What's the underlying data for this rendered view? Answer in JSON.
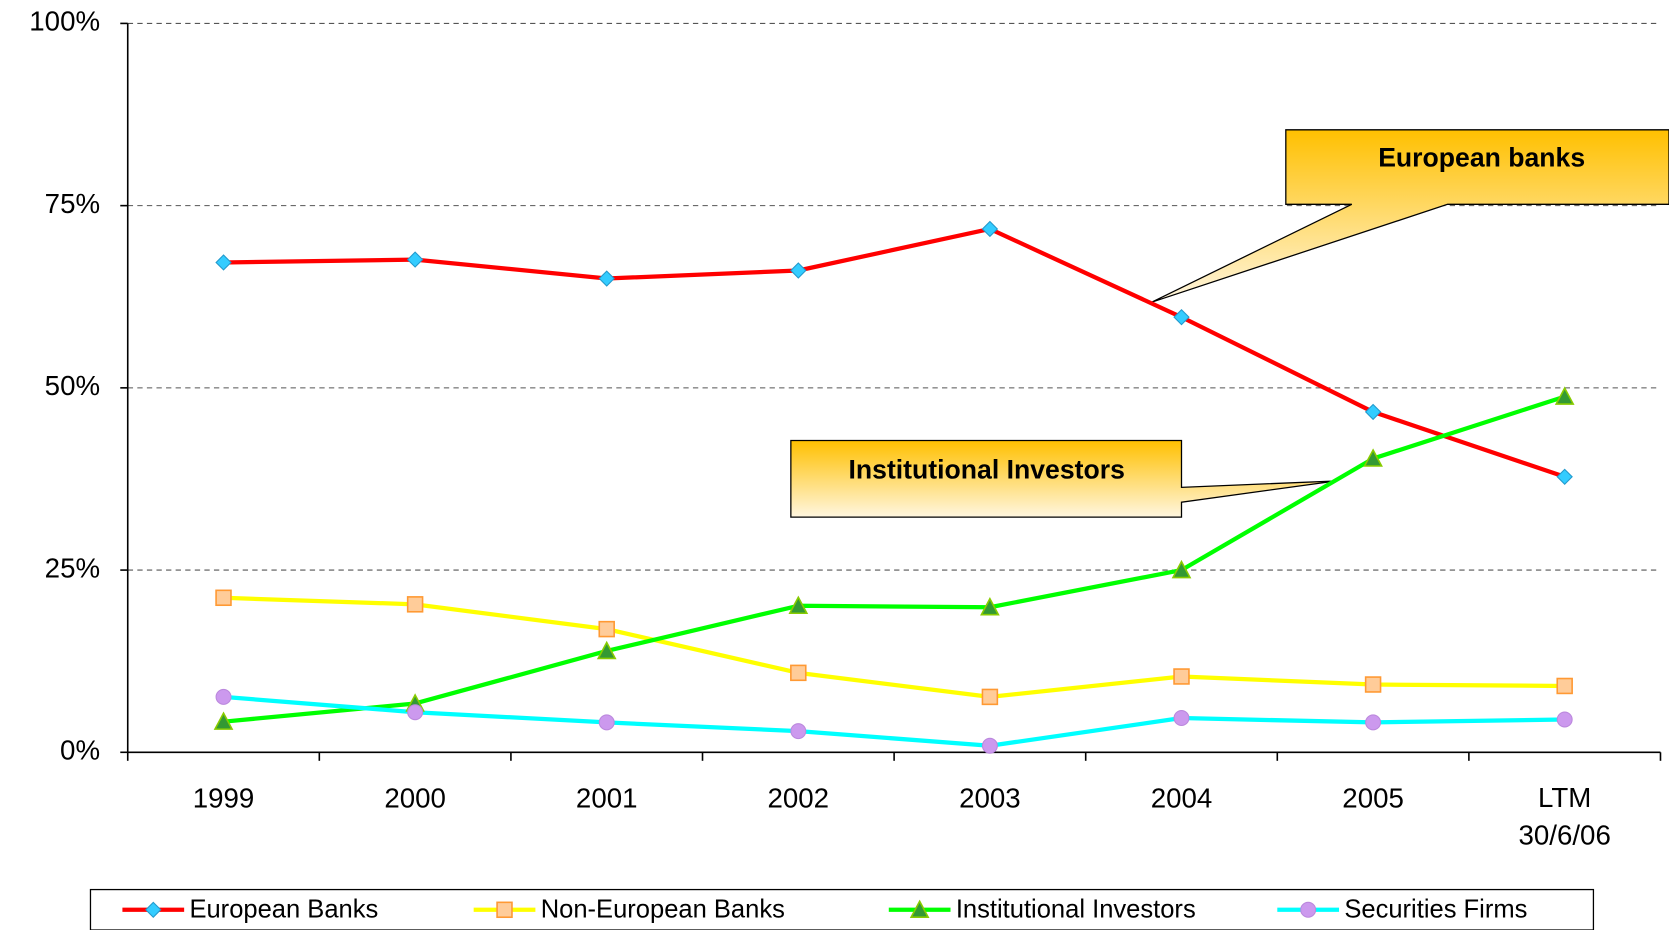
{
  "chart_data": {
    "type": "line",
    "categories": [
      "1999",
      "2000",
      "2001",
      "2002",
      "2003",
      "2004",
      "2005",
      "LTM\n30/6/06"
    ],
    "series": [
      {
        "name": "European Banks",
        "color": "#ff0000",
        "marker": "diamond",
        "marker_color": "#33ccff",
        "values": [
          67.2,
          67.6,
          65.0,
          66.1,
          71.8,
          59.7,
          46.7,
          37.8
        ]
      },
      {
        "name": "Non-European Banks",
        "color": "#ffff00",
        "marker": "square",
        "marker_color": "#ffcc99",
        "values": [
          21.2,
          20.3,
          16.9,
          10.9,
          7.6,
          10.4,
          9.3,
          9.1
        ]
      },
      {
        "name": "Institutional Investors",
        "color": "#00ff00",
        "marker": "triangle",
        "marker_color": "#339933",
        "values": [
          4.2,
          6.7,
          13.9,
          20.1,
          19.9,
          25.0,
          40.3,
          48.8
        ]
      },
      {
        "name": "Securities Firms",
        "color": "#00ffff",
        "marker": "circle",
        "marker_color": "#cc99ee",
        "values": [
          7.6,
          5.5,
          4.1,
          2.9,
          0.9,
          4.7,
          4.1,
          4.5
        ]
      }
    ],
    "ylim": [
      0,
      100
    ],
    "yticks": [
      {
        "value": 0,
        "label": "0%"
      },
      {
        "value": 25,
        "label": "25%"
      },
      {
        "value": 50,
        "label": "50%"
      },
      {
        "value": 75,
        "label": "75%"
      },
      {
        "value": 100,
        "label": "100%"
      }
    ],
    "grid": true,
    "legend": "bottom",
    "annotations": [
      {
        "text": "European banks",
        "series": 0
      },
      {
        "text": "Institutional Investors",
        "series": 2
      }
    ]
  }
}
